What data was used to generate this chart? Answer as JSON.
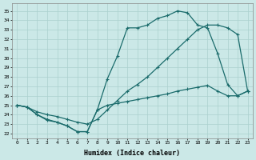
{
  "background_color": "#cbe8e7",
  "grid_color": "#aad0ce",
  "line_color": "#1a6b6b",
  "xlabel": "Humidex (Indice chaleur)",
  "x_ticks": [
    0,
    1,
    2,
    3,
    4,
    5,
    6,
    7,
    8,
    9,
    10,
    11,
    12,
    13,
    14,
    15,
    16,
    17,
    18,
    19,
    20,
    21,
    22,
    23
  ],
  "y_ticks": [
    22,
    23,
    24,
    25,
    26,
    27,
    28,
    29,
    30,
    31,
    32,
    33,
    34,
    35
  ],
  "xlim": [
    -0.5,
    23.5
  ],
  "ylim": [
    21.5,
    35.8
  ],
  "line1_y": [
    25.0,
    24.8,
    24.0,
    23.4,
    23.2,
    22.8,
    22.2,
    22.2,
    24.5,
    27.8,
    30.2,
    33.2,
    33.2,
    33.5,
    34.2,
    34.5,
    35.0,
    34.8,
    33.5,
    33.2,
    30.5,
    27.2,
    26.0,
    26.5
  ],
  "line2_y": [
    25.0,
    24.8,
    24.3,
    24.0,
    23.8,
    23.5,
    23.2,
    23.0,
    23.5,
    24.5,
    25.5,
    26.5,
    27.2,
    28.0,
    29.0,
    30.0,
    31.0,
    32.0,
    33.0,
    33.5,
    33.5,
    33.2,
    32.5,
    26.5
  ],
  "line3_y": [
    25.0,
    24.8,
    24.0,
    23.5,
    23.2,
    22.8,
    22.2,
    22.2,
    24.5,
    25.0,
    25.2,
    25.4,
    25.6,
    25.8,
    26.0,
    26.2,
    26.5,
    26.7,
    26.9,
    27.1,
    26.5,
    26.0,
    26.0,
    26.5
  ]
}
